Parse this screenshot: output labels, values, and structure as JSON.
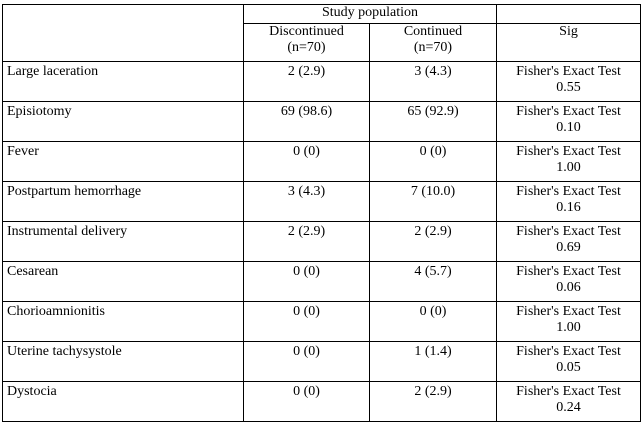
{
  "header": {
    "group_label": "Study population",
    "col1_line1": "Discontinued",
    "col1_line2": "(n=70)",
    "col2_line1": "Continued",
    "col2_line2": "(n=70)",
    "col3": "Sig"
  },
  "rows": [
    {
      "label": "Large laceration",
      "discontinued": "2 (2.9)",
      "continued": "3 (4.3)",
      "test": "Fisher's Exact Test",
      "p": "0.55"
    },
    {
      "label": "Episiotomy",
      "discontinued": "69 (98.6)",
      "continued": "65 (92.9)",
      "test": "Fisher's Exact Test",
      "p": "0.10"
    },
    {
      "label": "Fever",
      "discontinued": "0 (0)",
      "continued": "0 (0)",
      "test": "Fisher's Exact Test",
      "p": "1.00"
    },
    {
      "label": "Postpartum hemorrhage",
      "discontinued": "3 (4.3)",
      "continued": "7 (10.0)",
      "test": "Fisher's Exact Test",
      "p": "0.16"
    },
    {
      "label": "Instrumental delivery",
      "discontinued": "2 (2.9)",
      "continued": "2 (2.9)",
      "test": "Fisher's Exact Test",
      "p": "0.69"
    },
    {
      "label": "Cesarean",
      "discontinued": "0 (0)",
      "continued": "4 (5.7)",
      "test": "Fisher's Exact Test",
      "p": "0.06"
    },
    {
      "label": "Chorioamnionitis",
      "discontinued": "0 (0)",
      "continued": "0 (0)",
      "test": "Fisher's Exact Test",
      "p": "1.00"
    },
    {
      "label": "Uterine tachysystole",
      "discontinued": "0 (0)",
      "continued": "1 (1.4)",
      "test": "Fisher's Exact Test",
      "p": "0.05"
    },
    {
      "label": "Dystocia",
      "discontinued": "0 (0)",
      "continued": "2 (2.9)",
      "test": "Fisher's Exact Test",
      "p": "0.24"
    }
  ]
}
